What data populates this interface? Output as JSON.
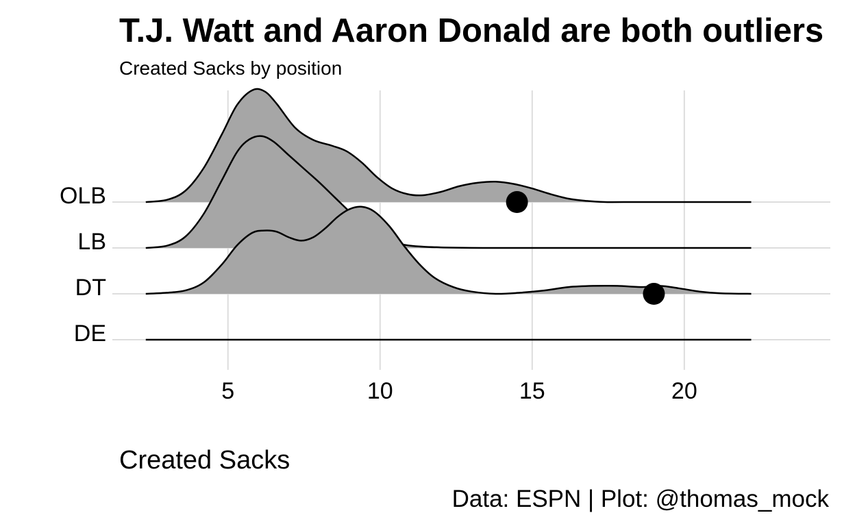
{
  "chart_data": {
    "type": "ridgeline",
    "title": "T.J. Watt and Aaron Donald are both outliers",
    "subtitle": "Created Sacks by position",
    "xlabel": "Created Sacks",
    "ylabel": "",
    "caption": "Data: ESPN | Plot: @thomas_mock",
    "xlim": [
      1.2,
      24.8
    ],
    "x_ticks": [
      5,
      10,
      15,
      20
    ],
    "grid": true,
    "fill_color": "#a6a6a6",
    "line_color": "#000000",
    "grid_color": "#dddddd",
    "categories": [
      "DE",
      "DT",
      "LB",
      "OLB"
    ],
    "series": [
      {
        "name": "OLB",
        "x": [
          2.3,
          3.0,
          3.6,
          4.2,
          4.8,
          5.3,
          5.8,
          6.2,
          6.6,
          7.2,
          7.8,
          8.4,
          8.9,
          9.4,
          9.9,
          10.4,
          10.9,
          11.4,
          12.0,
          12.6,
          13.2,
          13.8,
          14.4,
          15.0,
          15.6,
          16.2,
          16.8,
          17.4,
          18.0,
          20.0,
          22.2
        ],
        "density": [
          0.0,
          0.02,
          0.1,
          0.3,
          0.6,
          0.86,
          0.99,
          0.98,
          0.87,
          0.66,
          0.55,
          0.5,
          0.45,
          0.35,
          0.22,
          0.12,
          0.07,
          0.06,
          0.09,
          0.14,
          0.17,
          0.18,
          0.16,
          0.12,
          0.07,
          0.03,
          0.01,
          0.0,
          0.0,
          0.0,
          0.0
        ],
        "highlight": {
          "x": 14.5
        }
      },
      {
        "name": "LB",
        "x": [
          2.3,
          3.0,
          3.6,
          4.2,
          4.8,
          5.3,
          5.7,
          6.1,
          6.5,
          7.0,
          7.5,
          8.0,
          8.5,
          9.0,
          9.5,
          10.0,
          10.5,
          11.0,
          12.0,
          14.0,
          17.0,
          22.2
        ],
        "density": [
          0.0,
          0.02,
          0.1,
          0.3,
          0.6,
          0.85,
          0.96,
          0.99,
          0.94,
          0.82,
          0.7,
          0.58,
          0.45,
          0.32,
          0.2,
          0.11,
          0.05,
          0.02,
          0.005,
          0.0,
          0.0,
          0.0
        ]
      },
      {
        "name": "DT",
        "x": [
          2.3,
          3.0,
          3.6,
          4.2,
          4.8,
          5.3,
          5.8,
          6.2,
          6.6,
          7.0,
          7.4,
          7.8,
          8.2,
          8.6,
          9.0,
          9.4,
          9.8,
          10.3,
          10.8,
          11.3,
          11.8,
          12.4,
          13.0,
          13.8,
          14.6,
          15.4,
          16.2,
          17.0,
          17.8,
          18.6,
          19.2,
          19.8,
          20.5,
          21.2,
          22.2
        ],
        "density": [
          0.0,
          0.01,
          0.03,
          0.1,
          0.26,
          0.43,
          0.54,
          0.56,
          0.55,
          0.5,
          0.47,
          0.5,
          0.58,
          0.68,
          0.75,
          0.77,
          0.73,
          0.6,
          0.42,
          0.26,
          0.14,
          0.06,
          0.02,
          0.0,
          0.01,
          0.03,
          0.06,
          0.07,
          0.07,
          0.06,
          0.07,
          0.05,
          0.02,
          0.005,
          0.0
        ],
        "highlight": {
          "x": 19.0
        }
      },
      {
        "name": "DE",
        "x": [
          2.3,
          22.2
        ],
        "density": [
          0.0,
          0.0
        ]
      }
    ]
  }
}
